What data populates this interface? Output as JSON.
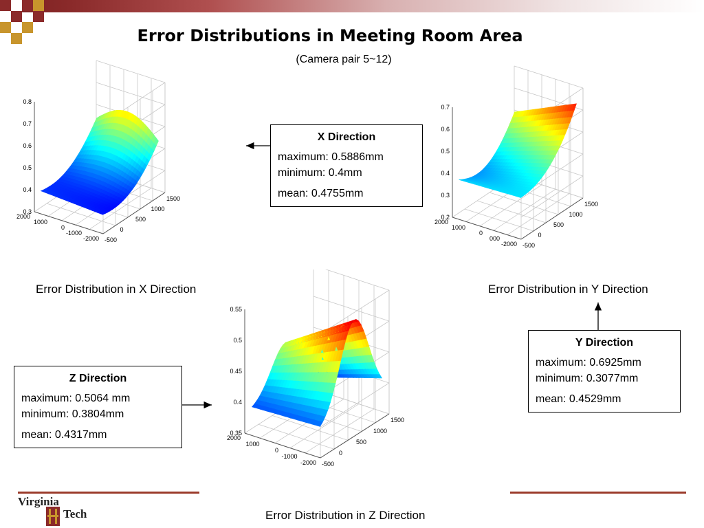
{
  "slide": {
    "title": "Error Distributions in Meeting Room Area",
    "subtitle": "(Camera pair 5~12)"
  },
  "plots": {
    "x": {
      "caption": "Error Distribution in X Direction",
      "zticks": [
        "0.8",
        "0.7",
        "0.6",
        "0.5",
        "0.4",
        "0.3"
      ],
      "leftticks": [
        "2000",
        "1000",
        "0",
        "-1000",
        "-2000"
      ],
      "rightticks": [
        "-500",
        "0",
        "500",
        "1000",
        "1500"
      ]
    },
    "y": {
      "caption": "Error Distribution in Y Direction",
      "zticks": [
        "0.7",
        "0.6",
        "0.5",
        "0.4",
        "0.3",
        "0.2"
      ],
      "leftticks": [
        "2000",
        "1000",
        "0",
        "000",
        "-2000"
      ],
      "rightticks": [
        "-500",
        "0",
        "500",
        "1000",
        "1500"
      ]
    },
    "z": {
      "caption": "Error Distribution in Z Direction",
      "zticks": [
        "0.55",
        "0.5",
        "0.45",
        "0.4",
        "0.35"
      ],
      "leftticks": [
        "2000",
        "1000",
        "0",
        "-1000",
        "-2000"
      ],
      "rightticks": [
        "-500",
        "0",
        "500",
        "1000",
        "1500"
      ]
    }
  },
  "boxes": {
    "x": {
      "heading": "X Direction",
      "maximum": "maximum: 0.5886mm",
      "minimum": "minimum: 0.4mm",
      "mean": "mean: 0.4755mm"
    },
    "y": {
      "heading": "Y Direction",
      "maximum": "maximum: 0.6925mm",
      "minimum": "minimum: 0.3077mm",
      "mean": "mean: 0.4529mm"
    },
    "z": {
      "heading": "Z Direction",
      "maximum": "maximum: 0.5064 mm",
      "minimum": "minimum: 0.3804mm",
      "mean": "mean: 0.4317mm"
    }
  },
  "logo": {
    "line1": "Virginia",
    "line2": "Tech"
  },
  "colors": {
    "accent": "#8b2a2a",
    "logo_squares": [
      "#8b2a2a",
      "#c8952c",
      "#ffffff"
    ],
    "rule": "#9b3b2b"
  }
}
